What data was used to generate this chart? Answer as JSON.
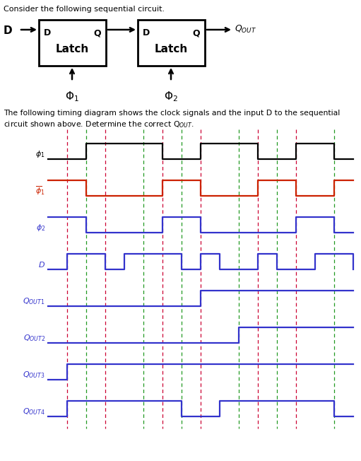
{
  "title_top": "Consider the following sequential circuit.",
  "text_timing": "The following timing diagram shows the clock signals and the input D to the sequential",
  "text_timing2": "circuit shown above. Determine the correct Q",
  "bg_color": "#ffffff",
  "phi1": [
    0,
    0,
    1,
    1,
    1,
    1,
    0,
    0,
    1,
    1,
    1,
    0,
    0,
    1,
    1,
    0,
    0
  ],
  "phi1b": [
    1,
    1,
    0,
    0,
    0,
    0,
    1,
    1,
    0,
    0,
    0,
    1,
    1,
    0,
    0,
    1,
    1
  ],
  "phi2": [
    1,
    1,
    0,
    0,
    0,
    0,
    1,
    1,
    0,
    0,
    0,
    0,
    0,
    1,
    1,
    0,
    0
  ],
  "D": [
    0,
    1,
    1,
    0,
    1,
    1,
    1,
    0,
    1,
    0,
    0,
    1,
    0,
    0,
    1,
    1,
    0
  ],
  "Qout1": [
    0,
    0,
    0,
    0,
    0,
    0,
    0,
    0,
    1,
    1,
    1,
    1,
    1,
    1,
    1,
    1,
    1
  ],
  "Qout2": [
    0,
    0,
    0,
    0,
    0,
    0,
    0,
    0,
    0,
    0,
    1,
    1,
    1,
    1,
    1,
    1,
    1
  ],
  "Qout3": [
    0,
    1,
    1,
    1,
    1,
    1,
    1,
    1,
    1,
    1,
    1,
    1,
    1,
    1,
    1,
    1,
    1
  ],
  "Qout4": [
    0,
    1,
    1,
    1,
    1,
    1,
    1,
    0,
    0,
    1,
    1,
    1,
    1,
    1,
    1,
    0,
    0
  ],
  "red_dashes": [
    1,
    3,
    6,
    8,
    11,
    13
  ],
  "green_dashes": [
    2,
    5,
    7,
    10,
    12,
    15
  ],
  "signal_colors": [
    "black",
    "#cc2200",
    "#3333cc",
    "#3333cc",
    "#3333cc",
    "#3333cc",
    "#3333cc",
    "#3333cc"
  ],
  "latch_color": "black",
  "arrow_color": "black"
}
